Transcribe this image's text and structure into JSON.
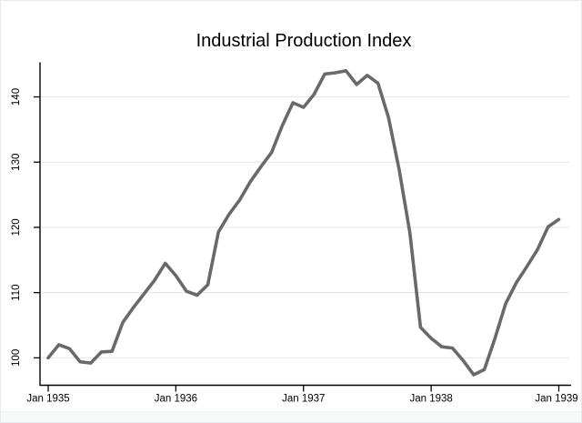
{
  "window": {
    "background": "#ffffff",
    "border_color": "#e9ecee",
    "footer_strip_color": "#f7f8f9",
    "footer_divider_color": "#e9ecee"
  },
  "chart_data": {
    "type": "line",
    "title": "Industrial Production Index",
    "xlabel": "",
    "ylabel": "",
    "grid": true,
    "legend": false,
    "frequency": "monthly",
    "x_start_label": "Jan 1935",
    "x_end_label": "Jan 1939",
    "x_tick_labels": [
      "Jan 1935",
      "Jan 1936",
      "Jan 1937",
      "Jan 1938",
      "Jan 1939"
    ],
    "x_tick_month_indices": [
      0,
      12,
      24,
      36,
      48
    ],
    "y_ticks": [
      100,
      110,
      120,
      130,
      140
    ],
    "y_tick_labels": [
      "100",
      "110",
      "120",
      "130",
      "140"
    ],
    "ylim": [
      95.8,
      145.3
    ],
    "line_color": "#696969",
    "grid_color": "#e4e4e4",
    "axis_color": "#000000",
    "series": [
      {
        "name": "Industrial Production Index",
        "color": "#696969",
        "values": [
          100.0,
          102.0,
          101.4,
          99.4,
          99.2,
          100.9,
          101.0,
          105.4,
          107.7,
          109.8,
          111.9,
          114.5,
          112.6,
          110.2,
          109.6,
          111.2,
          119.3,
          122.0,
          124.2,
          127.0,
          129.3,
          131.5,
          135.6,
          139.1,
          138.4,
          140.4,
          143.5,
          143.7,
          144.0,
          141.9,
          143.3,
          142.1,
          136.8,
          128.8,
          119.2,
          104.7,
          103.0,
          101.7,
          101.5,
          99.6,
          97.4,
          98.2,
          103.0,
          108.3,
          111.5,
          114.0,
          116.6,
          120.1,
          121.2
        ]
      }
    ]
  }
}
